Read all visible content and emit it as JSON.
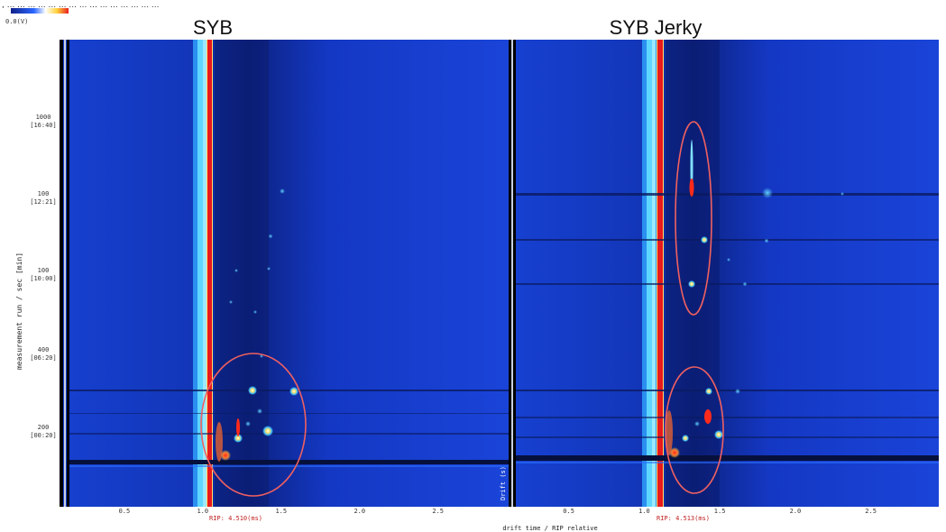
{
  "header": {
    "scale_label": "0.0(V)",
    "caption_fragment": ", ... ... ... ... ... ... ... ... ... ... ... ... ... ... ..."
  },
  "chart_data": [
    {
      "type": "heatmap",
      "title": "SYB",
      "xlabel": "",
      "ylabel": "measurement run / sec [min]",
      "x_ticks": [
        "0.5",
        "1.0",
        "1.5",
        "2.0",
        "2.5"
      ],
      "y_ticks": [
        "1000\n[16:40]",
        "100\n[12:21]",
        "100\n[10:00]",
        "400\n[06:20]",
        "200\n[00:20]"
      ],
      "rip_label": "RIP: 4.510(ms)",
      "side_label": "Drift (s)",
      "annotations": [
        {
          "shape": "ellipse",
          "label": "",
          "description": "highlighted lower spot cluster"
        }
      ],
      "colors": {
        "background": "#1a3ec8",
        "rip_line": "#e8191c",
        "ellipse": "#f06060"
      }
    },
    {
      "type": "heatmap",
      "title": "SYB Jerky",
      "xlabel": "drift time / RIP relative",
      "ylabel": "",
      "x_ticks": [
        "0.5",
        "1.0",
        "1.5",
        "2.0",
        "2.5"
      ],
      "rip_label": "RIP: 4.513(ms)",
      "annotations": [
        {
          "shape": "ellipse",
          "label": "",
          "description": "upper spot cluster"
        },
        {
          "shape": "ellipse",
          "label": "",
          "description": "lower spot cluster"
        }
      ],
      "colors": {
        "background": "#1a3ec8",
        "rip_line": "#e8191c",
        "ellipse": "#f06060"
      }
    }
  ]
}
